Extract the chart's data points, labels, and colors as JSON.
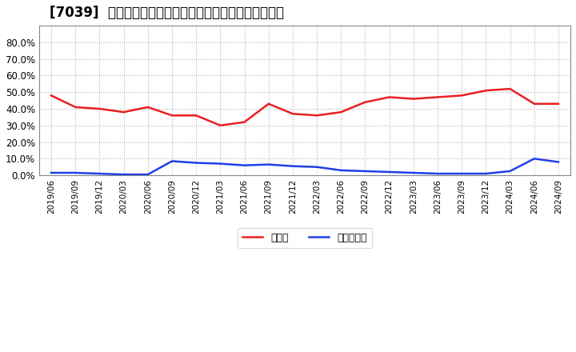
{
  "title": "[7039]  現預金、有利子負債の総資産に対する比率の推移",
  "x_labels": [
    "2019/06",
    "2019/09",
    "2019/12",
    "2020/03",
    "2020/06",
    "2020/09",
    "2020/12",
    "2021/03",
    "2021/06",
    "2021/09",
    "2021/12",
    "2022/03",
    "2022/06",
    "2022/09",
    "2022/12",
    "2023/03",
    "2023/06",
    "2023/09",
    "2023/12",
    "2024/03",
    "2024/06",
    "2024/09"
  ],
  "cash_ratio": [
    0.48,
    0.41,
    0.4,
    0.38,
    0.41,
    0.36,
    0.36,
    0.3,
    0.32,
    0.43,
    0.37,
    0.36,
    0.38,
    0.44,
    0.47,
    0.46,
    0.47,
    0.48,
    0.51,
    0.52,
    0.43,
    0.43
  ],
  "debt_ratio": [
    0.015,
    0.015,
    0.01,
    0.005,
    0.005,
    0.085,
    0.075,
    0.07,
    0.06,
    0.065,
    0.055,
    0.05,
    0.03,
    0.025,
    0.02,
    0.015,
    0.01,
    0.01,
    0.01,
    0.025,
    0.1,
    0.08
  ],
  "cash_color": "#e82020",
  "debt_color": "#2040e8",
  "background_color": "#ffffff",
  "plot_bg_color": "#ffffff",
  "grid_color": "#aaaaaa",
  "title_fontsize": 12,
  "legend_cash": "現預金",
  "legend_debt": "有利子負債",
  "ylim": [
    0.0,
    0.9
  ],
  "yticks": [
    0.0,
    0.1,
    0.2,
    0.3,
    0.4,
    0.5,
    0.6,
    0.7,
    0.8
  ]
}
